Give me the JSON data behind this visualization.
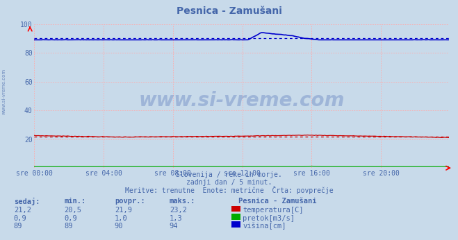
{
  "title": "Pesnica - Zamušani",
  "bg_color": "#c8daea",
  "plot_bg_color": "#c8daea",
  "text_color": "#4466aa",
  "grid_color": "#ffaaaa",
  "temp_color": "#cc0000",
  "pretok_color": "#00aa00",
  "visina_color": "#0000cc",
  "xlim": [
    0,
    287
  ],
  "ylim": [
    0,
    100
  ],
  "yticks": [
    20,
    40,
    60,
    80,
    100
  ],
  "xtick_labels": [
    "sre 00:00",
    "sre 04:00",
    "sre 08:00",
    "sre 12:00",
    "sre 16:00",
    "sre 20:00"
  ],
  "xtick_positions": [
    0,
    48,
    96,
    144,
    192,
    240
  ],
  "temp_avg": 21.9,
  "visina_avg": 90,
  "watermark": "www.si-vreme.com",
  "subtitle1": "Slovenija / reke in morje.",
  "subtitle2": "zadnji dan / 5 minut.",
  "subtitle3": "Meritve: trenutne  Enote: metrične  Črta: povprečje",
  "legend_title": "Pesnica - Zamušani",
  "legend_temp": "temperatura[C]",
  "legend_pretok": "pretok[m3/s]",
  "legend_visina": "višina[cm]",
  "stat_headers": [
    "sedaj:",
    "min.:",
    "povpr.:",
    "maks.:"
  ],
  "stat_temp": [
    "21,2",
    "20,5",
    "21,9",
    "23,2"
  ],
  "stat_pretok": [
    "0,9",
    "0,9",
    "1,0",
    "1,3"
  ],
  "stat_visina": [
    "89",
    "89",
    "90",
    "94"
  ]
}
